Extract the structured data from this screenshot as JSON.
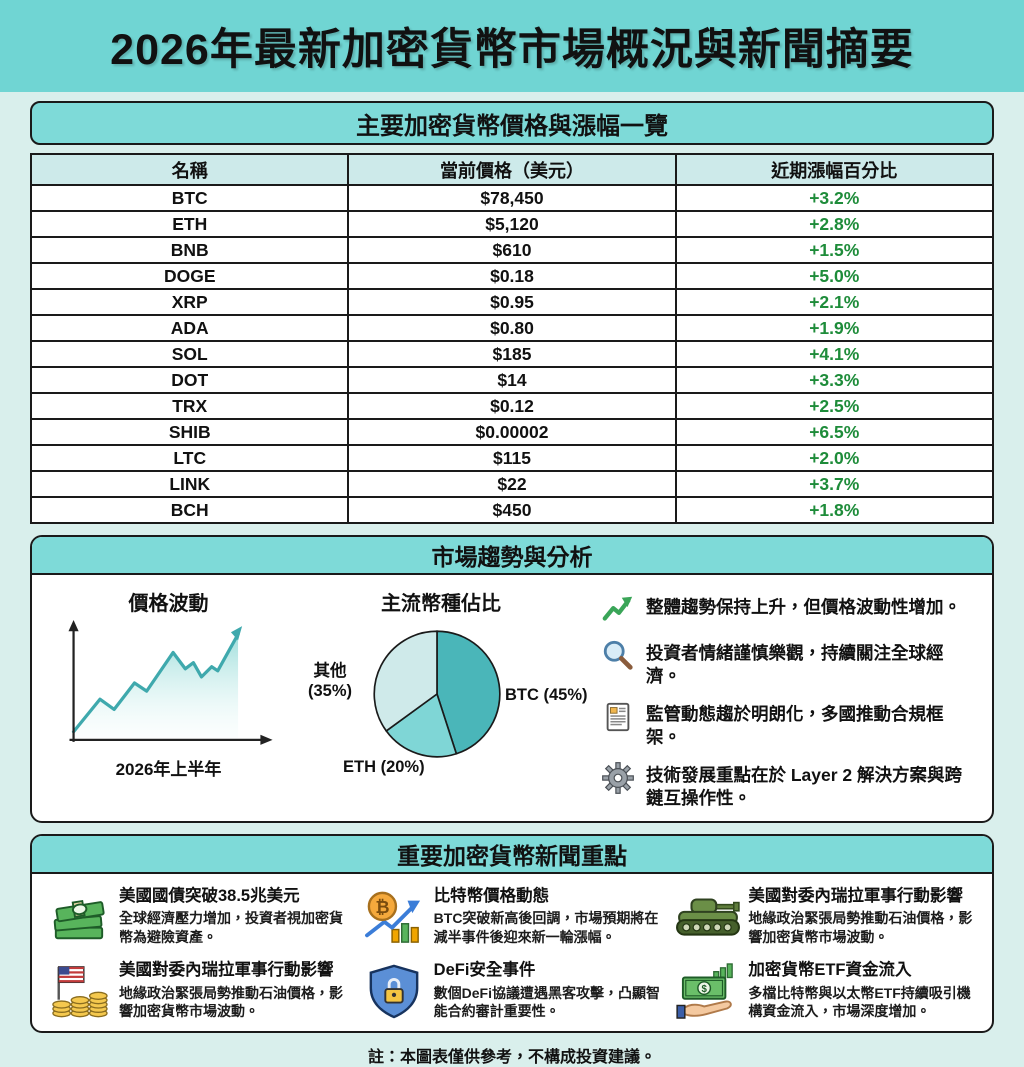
{
  "page": {
    "title": "2026年最新加密貨幣市場概況與新聞摘要",
    "footnote": "註：本圖表僅供參考，不構成投資建議。",
    "colors": {
      "banner": "#70d5d3",
      "section_header": "#7edad8",
      "table_header": "#cdeaea",
      "page_bg": "#d9efec",
      "positive": "#1e8c3a",
      "border": "#1a1a1a"
    }
  },
  "price_table": {
    "section_title": "主要加密貨幣價格與漲幅一覽",
    "columns": [
      "名稱",
      "當前價格（美元）",
      "近期漲幅百分比"
    ],
    "rows": [
      {
        "name": "BTC",
        "price": "$78,450",
        "change": "+3.2%"
      },
      {
        "name": "ETH",
        "price": "$5,120",
        "change": "+2.8%"
      },
      {
        "name": "BNB",
        "price": "$610",
        "change": "+1.5%"
      },
      {
        "name": "DOGE",
        "price": "$0.18",
        "change": "+5.0%"
      },
      {
        "name": "XRP",
        "price": "$0.95",
        "change": "+2.1%"
      },
      {
        "name": "ADA",
        "price": "$0.80",
        "change": "+1.9%"
      },
      {
        "name": "SOL",
        "price": "$185",
        "change": "+4.1%"
      },
      {
        "name": "DOT",
        "price": "$14",
        "change": "+3.3%"
      },
      {
        "name": "TRX",
        "price": "$0.12",
        "change": "+2.5%"
      },
      {
        "name": "SHIB",
        "price": "$0.00002",
        "change": "+6.5%"
      },
      {
        "name": "LTC",
        "price": "$115",
        "change": "+2.0%"
      },
      {
        "name": "LINK",
        "price": "$22",
        "change": "+3.7%"
      },
      {
        "name": "BCH",
        "price": "$450",
        "change": "+1.8%"
      }
    ]
  },
  "trends": {
    "section_title": "市場趨勢與分析",
    "line_chart": {
      "title": "價格波動",
      "xlabel": "2026年上半年",
      "line_color": "#3fa9ad"
    },
    "pie_chart": {
      "title": "主流幣種佔比",
      "slices": [
        {
          "label": "BTC (45%)",
          "value": 45,
          "color": "#4ab6b9"
        },
        {
          "label": "ETH (20%)",
          "value": 20,
          "color": "#7fd6d6"
        },
        {
          "label": "其他 (35%)",
          "value": 35,
          "color": "#cfeaea"
        }
      ]
    },
    "bullets": [
      {
        "icon": "trend-up-icon",
        "text": "整體趨勢保持上升，但價格波動性增加。"
      },
      {
        "icon": "magnifier-icon",
        "text": "投資者情緒謹慎樂觀，持續關注全球經濟。"
      },
      {
        "icon": "regulation-doc-icon",
        "text": "監管動態趨於明朗化，多國推動合規框架。"
      },
      {
        "icon": "gear-icon",
        "text": "技術發展重點在於 Layer 2 解決方案與跨鏈互操作性。"
      }
    ]
  },
  "news": {
    "section_title": "重要加密貨幣新聞重點",
    "items": [
      {
        "icon": "money-stack-icon",
        "title": "美國國債突破38.5兆美元",
        "body": "全球經濟壓力增加，投資者視加密貨幣為避險資產。"
      },
      {
        "icon": "bitcoin-chart-icon",
        "title": "比特幣價格動態",
        "body": "BTC突破新高後回調，市場預期將在減半事件後迎來新一輪漲幅。"
      },
      {
        "icon": "tank-icon",
        "title": "美國對委內瑞拉軍事行動影響",
        "body": "地緣政治緊張局勢推動石油價格，影響加密貨幣市場波動。"
      },
      {
        "icon": "flag-coins-icon",
        "title": "美國對委內瑞拉軍事行動影響",
        "body": "地緣政治緊張局勢推動石油價格，影響加密貨幣市場波動。"
      },
      {
        "icon": "shield-lock-icon",
        "title": "DeFi安全事件",
        "body": "數個DeFi協議遭遇黑客攻擊，凸顯智能合約審計重要性。"
      },
      {
        "icon": "etf-inflow-icon",
        "title": "加密貨幣ETF資金流入",
        "body": "多檔比特幣與以太幣ETF持續吸引機構資金流入，市場深度增加。"
      }
    ]
  },
  "chart_data": [
    {
      "type": "table",
      "title": "主要加密貨幣價格與漲幅一覽",
      "columns": [
        "名稱",
        "當前價格（美元）",
        "近期漲幅百分比"
      ],
      "rows": [
        [
          "BTC",
          "$78,450",
          "+3.2%"
        ],
        [
          "ETH",
          "$5,120",
          "+2.8%"
        ],
        [
          "BNB",
          "$610",
          "+1.5%"
        ],
        [
          "DOGE",
          "$0.18",
          "+5.0%"
        ],
        [
          "XRP",
          "$0.95",
          "+2.1%"
        ],
        [
          "ADA",
          "$0.80",
          "+1.9%"
        ],
        [
          "SOL",
          "$185",
          "+4.1%"
        ],
        [
          "DOT",
          "$14",
          "+3.3%"
        ],
        [
          "TRX",
          "$0.12",
          "+2.5%"
        ],
        [
          "SHIB",
          "$0.00002",
          "+6.5%"
        ],
        [
          "LTC",
          "$115",
          "+2.0%"
        ],
        [
          "LINK",
          "$22",
          "+3.7%"
        ],
        [
          "BCH",
          "$450",
          "+1.8%"
        ]
      ]
    },
    {
      "type": "line",
      "title": "價格波動",
      "xlabel": "2026年上半年",
      "x": [
        1,
        2,
        3,
        4,
        5,
        6,
        7,
        8,
        9,
        10,
        11,
        12
      ],
      "values": [
        8,
        35,
        27,
        48,
        42,
        72,
        58,
        65,
        52,
        60,
        57,
        95
      ],
      "ylim": [
        0,
        100
      ],
      "grid": false,
      "legend": false
    },
    {
      "type": "pie",
      "title": "主流幣種佔比",
      "labels": [
        "BTC",
        "ETH",
        "其他"
      ],
      "values": [
        45,
        20,
        35
      ]
    }
  ]
}
